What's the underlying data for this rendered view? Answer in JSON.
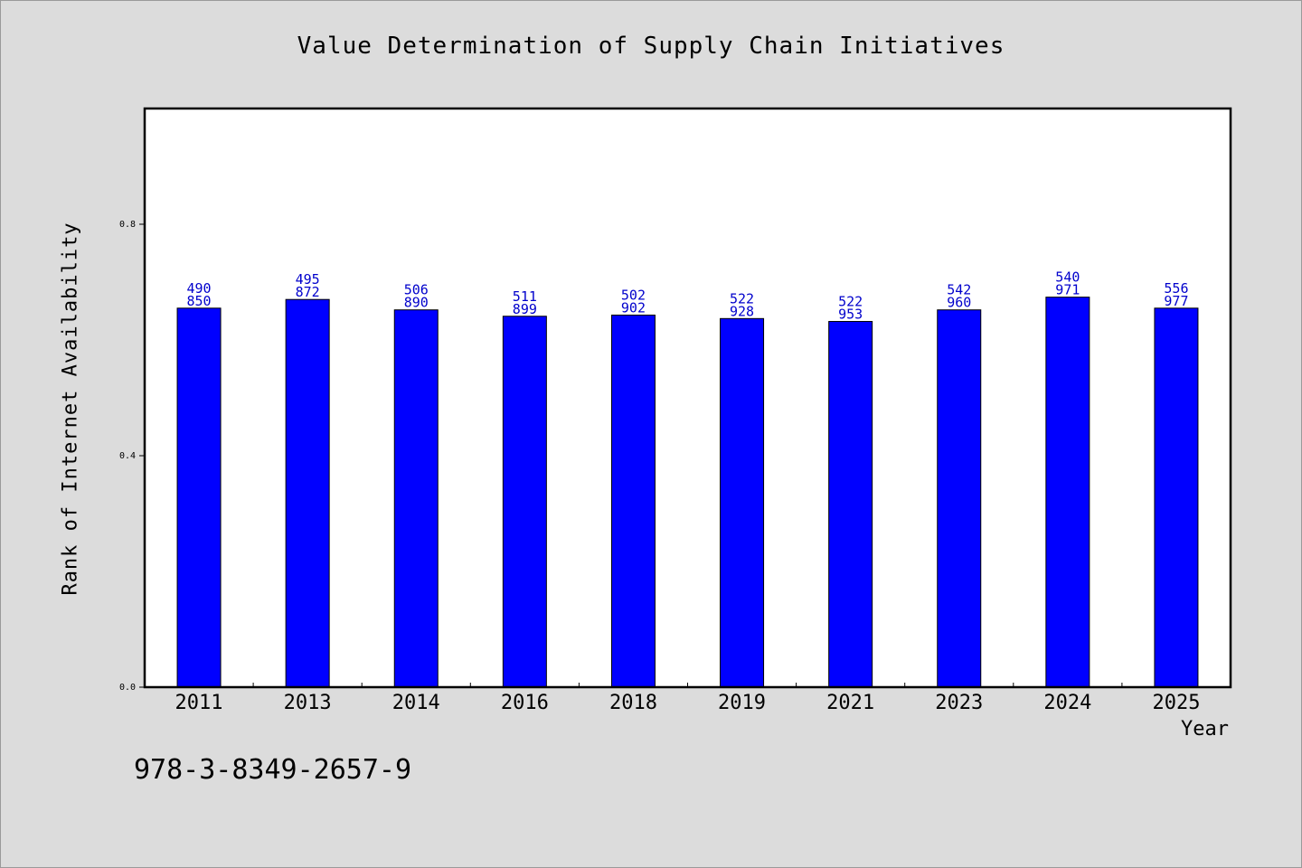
{
  "title": "Value Determination of Supply Chain Initiatives",
  "footnote": "978-3-8349-2657-9",
  "colors": {
    "bar": "#0000ff",
    "label": "#0000cc",
    "background": "#dcdcdc",
    "plot": "#ffffff"
  },
  "chart_data": {
    "type": "bar",
    "title": "Value Determination of Supply Chain Initiatives",
    "xlabel": "Year",
    "ylabel": "Rank of Internet Availability",
    "ylim": [
      0,
      1.0
    ],
    "yticks": [
      0.0,
      0.4,
      0.8
    ],
    "ytick_labels": [
      "0.0",
      "0.4",
      "0.8"
    ],
    "grid": false,
    "categories": [
      "2011",
      "2013",
      "2014",
      "2016",
      "2018",
      "2019",
      "2021",
      "2023",
      "2024",
      "2025"
    ],
    "values": [
      0.655,
      0.67,
      0.652,
      0.641,
      0.643,
      0.637,
      0.632,
      0.652,
      0.674,
      0.655
    ],
    "bar_labels": [
      [
        "490",
        "850"
      ],
      [
        "495",
        "872"
      ],
      [
        "506",
        "890"
      ],
      [
        "511",
        "899"
      ],
      [
        "502",
        "902"
      ],
      [
        "522",
        "928"
      ],
      [
        "522",
        "953"
      ],
      [
        "542",
        "960"
      ],
      [
        "540",
        "971"
      ],
      [
        "556",
        "977"
      ]
    ]
  }
}
